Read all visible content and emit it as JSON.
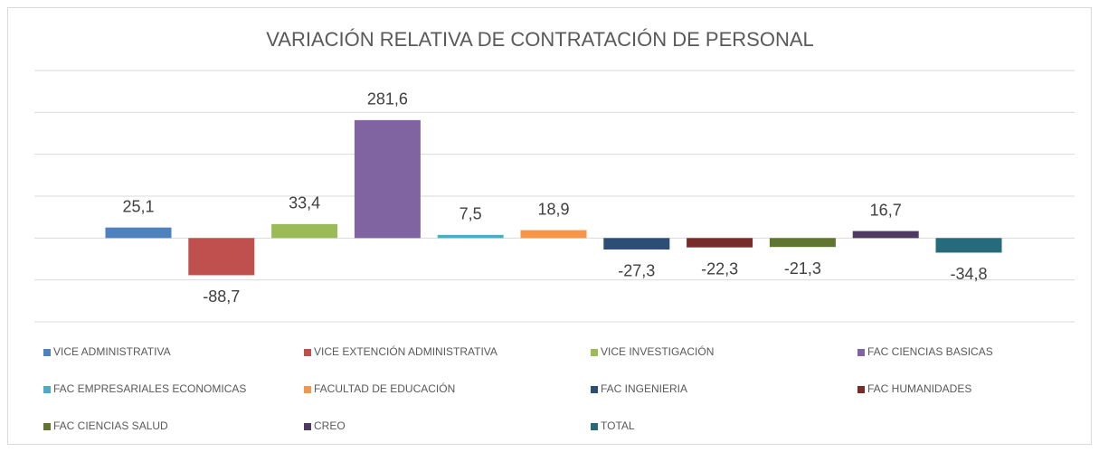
{
  "chart_data": {
    "type": "bar",
    "title": "VARIACIÓN RELATIVA DE CONTRATACIÓN DE PERSONAL",
    "series": [
      {
        "name": "VICE ADMINISTRATIVA",
        "color": "#4f81bd",
        "values": [
          25.1
        ],
        "value_labels": [
          "25,1"
        ]
      },
      {
        "name": "VICE EXTENCIÓN ADMINISTRATIVA",
        "color": "#c0504d",
        "values": [
          -88.7
        ],
        "value_labels": [
          "-88,7"
        ]
      },
      {
        "name": "VICE INVESTIGACIÓN",
        "color": "#9bbb59",
        "values": [
          33.4
        ],
        "value_labels": [
          "33,4"
        ]
      },
      {
        "name": "FAC CIENCIAS BASICAS",
        "color": "#8064a2",
        "values": [
          281.6
        ],
        "value_labels": [
          "281,6"
        ]
      },
      {
        "name": "FAC EMPRESARIALES ECONOMICAS",
        "color": "#4bacc6",
        "values": [
          7.5
        ],
        "value_labels": [
          "7,5"
        ]
      },
      {
        "name": "FACULTAD DE EDUCACIÓN",
        "color": "#f79646",
        "values": [
          18.9
        ],
        "value_labels": [
          "18,9"
        ]
      },
      {
        "name": "FAC INGENIERIA",
        "color": "#2c4d75",
        "values": [
          -27.3
        ],
        "value_labels": [
          "-27,3"
        ]
      },
      {
        "name": "FAC HUMANIDADES",
        "color": "#772c2a",
        "values": [
          -22.3
        ],
        "value_labels": [
          "-22,3"
        ]
      },
      {
        "name": "FAC CIENCIAS SALUD",
        "color": "#5f7530",
        "values": [
          -21.3
        ],
        "value_labels": [
          "-21,3"
        ]
      },
      {
        "name": "CREO",
        "color": "#4d3b62",
        "values": [
          16.7
        ],
        "value_labels": [
          "16,7"
        ]
      },
      {
        "name": "TOTAL",
        "color": "#276a7c",
        "values": [
          -34.8
        ],
        "value_labels": [
          "-34,8"
        ]
      }
    ],
    "ylim": [
      -200,
      400
    ],
    "yticks": [
      -200,
      -100,
      0,
      100,
      200,
      300,
      400
    ],
    "grid": true
  }
}
